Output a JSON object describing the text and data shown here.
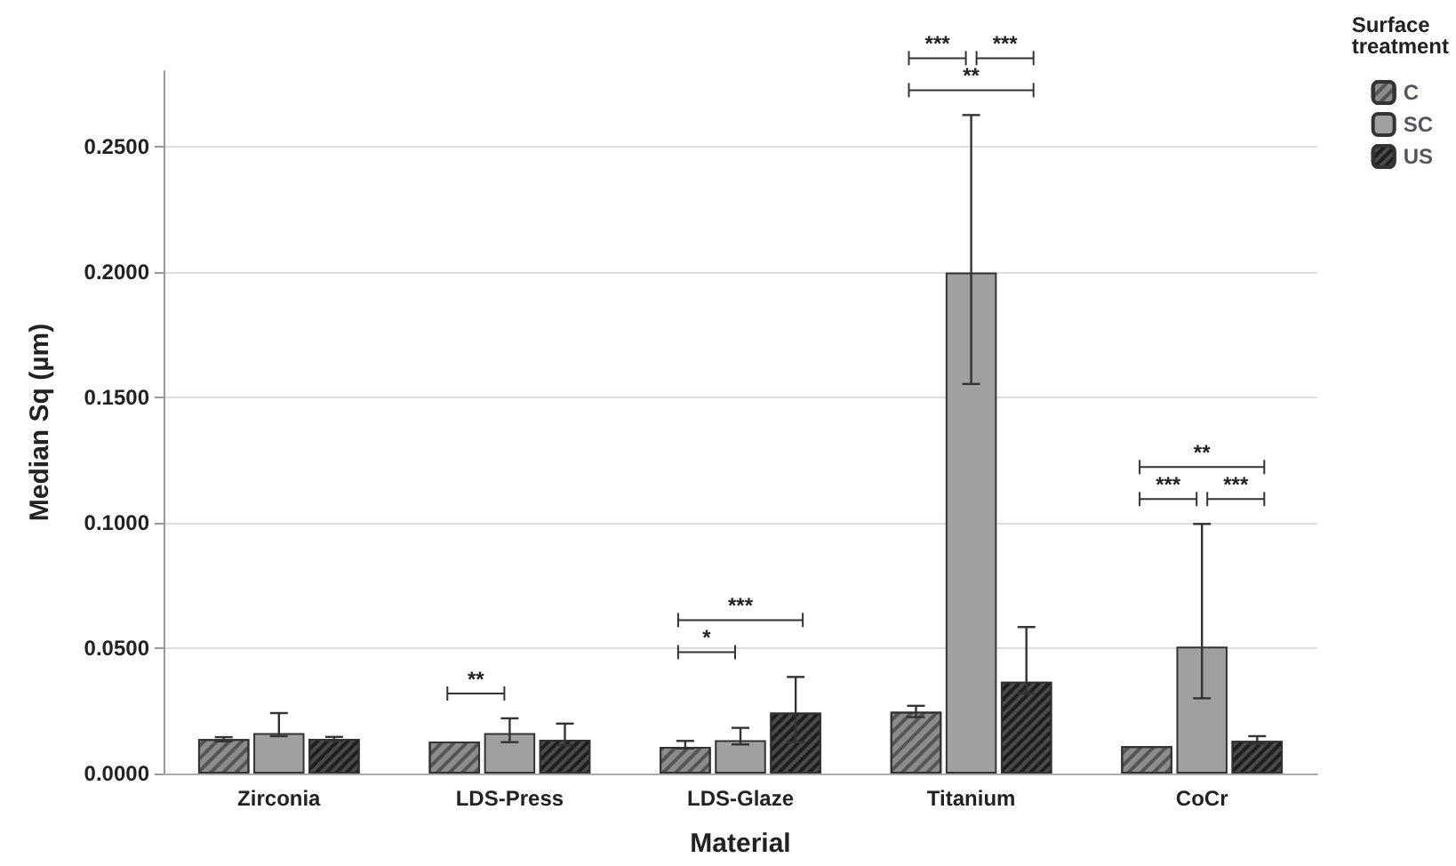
{
  "chart_data": {
    "type": "bar",
    "xlabel": "Material",
    "ylabel": "Median Sq (µm)",
    "legend_title": "Surface treatment",
    "categories": [
      "Zirconia",
      "LDS-Press",
      "LDS-Glaze",
      "Titanium",
      "CoCr"
    ],
    "series": [
      {
        "name": "C",
        "color": "#8c8c8c",
        "values": [
          0.0137,
          0.0128,
          0.0106,
          0.0246,
          0.0109
        ],
        "errors": [
          [
            0.0128,
            0.0145
          ],
          null,
          [
            0.01,
            0.013
          ],
          [
            0.0225,
            0.027
          ],
          null
        ]
      },
      {
        "name": "SC",
        "color": "#a0a0a0",
        "values": [
          0.0161,
          0.0161,
          0.0133,
          0.1997,
          0.0506
        ],
        "errors": [
          [
            0.0149,
            0.0241
          ],
          [
            0.0125,
            0.022
          ],
          [
            0.0116,
            0.0182
          ],
          [
            0.1553,
            0.2625
          ],
          [
            0.03,
            0.0995
          ]
        ]
      },
      {
        "name": "US",
        "color": "#4a4a4a",
        "values": [
          0.0138,
          0.0135,
          0.0243,
          0.0366,
          0.013
        ],
        "errors": [
          [
            0.013,
            0.0146
          ],
          [
            0.0113,
            0.0199
          ],
          [
            0.0125,
            0.0385
          ],
          [
            0.0319,
            0.0584
          ],
          [
            0.0118,
            0.0149
          ]
        ]
      }
    ],
    "ylim": [
      0,
      0.28
    ],
    "yticks": [
      {
        "value": 0,
        "label": "0.0000"
      },
      {
        "value": 0.05,
        "label": "0.0500"
      },
      {
        "value": 0.1,
        "label": "0.1000"
      },
      {
        "value": 0.15,
        "label": "0.1500"
      },
      {
        "value": 0.2,
        "label": "0.2000"
      },
      {
        "value": 0.25,
        "label": "0.2500"
      }
    ],
    "grid": "y",
    "legend": "top right",
    "annotations": [
      "**",
      "*",
      "***",
      "***",
      "***",
      "**",
      "***",
      "***",
      "**"
    ]
  }
}
